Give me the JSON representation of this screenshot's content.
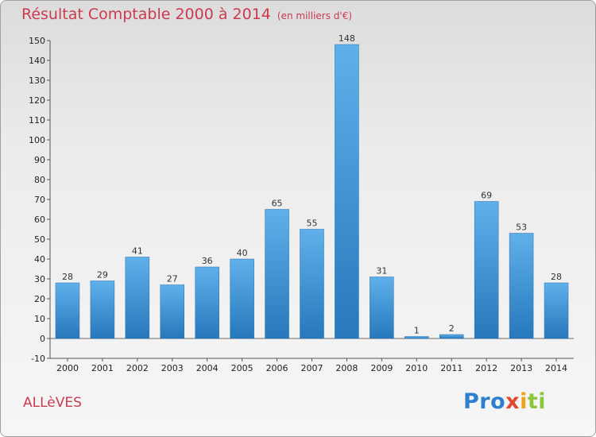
{
  "chart_data": {
    "type": "bar",
    "title": "Résultat Comptable 2000 à 2014",
    "subtitle": "(en milliers d'€)",
    "categories": [
      "2000",
      "2001",
      "2002",
      "2003",
      "2004",
      "2005",
      "2006",
      "2007",
      "2008",
      "2009",
      "2010",
      "2011",
      "2012",
      "2013",
      "2014"
    ],
    "values": [
      28,
      29,
      41,
      27,
      36,
      40,
      65,
      55,
      148,
      31,
      1,
      2,
      69,
      53,
      28
    ],
    "ylim": [
      -10,
      150
    ],
    "yticks": [
      -10,
      0,
      10,
      20,
      30,
      40,
      50,
      60,
      70,
      80,
      90,
      100,
      110,
      120,
      130,
      140,
      150
    ],
    "grid": false,
    "bar_color": "#3d97dc",
    "xlabel": "",
    "ylabel": ""
  },
  "commune": "ALLèVES",
  "logo": {
    "text": "Proxiti",
    "part1": "Pro",
    "part2": "x",
    "part3": "i",
    "part4": "ti"
  }
}
